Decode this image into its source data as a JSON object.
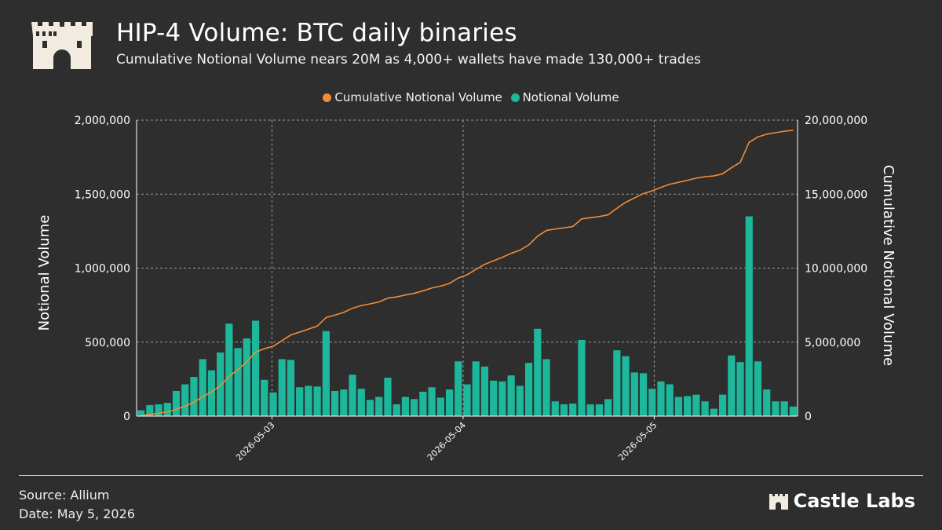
{
  "header": {
    "title": "HIP-4 Volume: BTC daily binaries",
    "subtitle": "Cumulative Notional Volume nears 20M as 4,000+ wallets have made 130,000+ trades"
  },
  "footer": {
    "source": "Source: Allium",
    "date": "Date: May 5, 2026",
    "brand": "Castle Labs"
  },
  "colors": {
    "background": "#2e2e2e",
    "bar": "#1db89c",
    "line": "#f28c38",
    "grid": "#9a9a9a"
  },
  "icons": {
    "logo": "castle-icon",
    "brand": "castle-icon"
  },
  "chart_data": {
    "type": "bar",
    "legend_position": "top-center",
    "grid": true,
    "ylabel": "Notional Volume",
    "y2label": "Cumulative Notional Volume",
    "ylim": [
      0,
      2000000
    ],
    "y2lim": [
      0,
      20000000
    ],
    "yticks": [
      "2,000,000",
      "1,500,000",
      "1,000,000",
      "500,000",
      "0"
    ],
    "y2ticks": [
      "20,000,000",
      "15,000,000",
      "10,000,000",
      "5,000,000",
      "0"
    ],
    "x_range": [
      "2026-05-02 07:00",
      "2026-05-05 18:00"
    ],
    "xticks": [
      "2026-05-03",
      "2026-05-04",
      "2026-05-05"
    ],
    "series": [
      {
        "name": "Notional Volume",
        "kind": "bar",
        "axis": "left",
        "values": [
          40000,
          75000,
          80000,
          90000,
          170000,
          215000,
          265000,
          385000,
          310000,
          430000,
          625000,
          460000,
          525000,
          645000,
          245000,
          160000,
          385000,
          380000,
          195000,
          205000,
          200000,
          575000,
          170000,
          180000,
          280000,
          185000,
          110000,
          130000,
          260000,
          80000,
          130000,
          115000,
          165000,
          195000,
          125000,
          180000,
          370000,
          215000,
          370000,
          335000,
          240000,
          235000,
          275000,
          205000,
          360000,
          590000,
          385000,
          100000,
          80000,
          85000,
          515000,
          80000,
          80000,
          115000,
          445000,
          405000,
          295000,
          290000,
          185000,
          235000,
          215000,
          130000,
          135000,
          145000,
          100000,
          50000,
          145000,
          410000,
          365000,
          1350000,
          370000,
          180000,
          100000,
          100000,
          65000
        ]
      },
      {
        "name": "Cumulative Notional Volume",
        "kind": "line",
        "axis": "right",
        "values": [
          40000,
          115000,
          195000,
          285000,
          455000,
          670000,
          935000,
          1320000,
          1630000,
          2060000,
          2685000,
          3145000,
          3670000,
          4315000,
          4560000,
          4720000,
          5105000,
          5485000,
          5680000,
          5885000,
          6085000,
          6660000,
          6830000,
          7010000,
          7290000,
          7475000,
          7585000,
          7715000,
          7975000,
          8055000,
          8185000,
          8300000,
          8465000,
          8660000,
          8785000,
          8965000,
          9335000,
          9550000,
          9920000,
          10255000,
          10495000,
          10730000,
          11005000,
          11210000,
          11570000,
          12160000,
          12545000,
          12645000,
          12725000,
          12810000,
          13325000,
          13405000,
          13485000,
          13600000,
          14045000,
          14450000,
          14745000,
          15035000,
          15220000,
          15455000,
          15670000,
          15800000,
          15935000,
          16080000,
          16180000,
          16230000,
          16375000,
          16785000,
          17150000,
          18500000,
          18870000,
          19050000,
          19150000,
          19250000,
          19315000
        ]
      }
    ]
  }
}
